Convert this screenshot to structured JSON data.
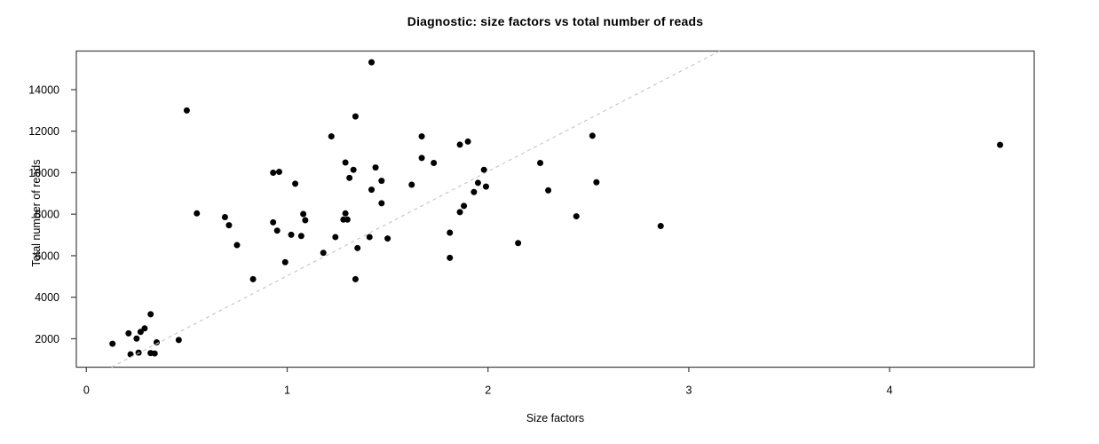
{
  "title": "Diagnostic: size factors vs total number of reads",
  "background_color": "#ffffff",
  "chart_data": {
    "type": "scatter",
    "title": "Diagnostic: size factors vs total number of reads",
    "xlabel": "Size factors",
    "ylabel": "Total number of reads",
    "xlim": [
      -0.05,
      4.72
    ],
    "ylim": [
      630,
      15860
    ],
    "x_ticks": [
      0,
      1,
      2,
      3,
      4
    ],
    "y_ticks": [
      2000,
      4000,
      6000,
      8000,
      10000,
      12000,
      14000
    ],
    "grid": false,
    "legend": "none",
    "point_color": "#000000",
    "point_radius_px": 3.5,
    "axis_color": "#4d4d4d",
    "reference_line": {
      "slope": 5030,
      "intercept": 0,
      "color": "#c9c9c9",
      "dash": "4 4"
    },
    "points": [
      [
        0.13,
        1760
      ],
      [
        0.21,
        2260
      ],
      [
        0.22,
        1250
      ],
      [
        0.25,
        2010
      ],
      [
        0.26,
        1330
      ],
      [
        0.27,
        2330
      ],
      [
        0.29,
        2500
      ],
      [
        0.32,
        3180
      ],
      [
        0.32,
        1310
      ],
      [
        0.34,
        1290
      ],
      [
        0.35,
        1830
      ],
      [
        0.46,
        1940
      ],
      [
        0.5,
        13000
      ],
      [
        0.55,
        8040
      ],
      [
        0.69,
        7860
      ],
      [
        0.71,
        7470
      ],
      [
        0.75,
        6510
      ],
      [
        0.83,
        4870
      ],
      [
        0.93,
        10000
      ],
      [
        0.93,
        7610
      ],
      [
        0.95,
        7210
      ],
      [
        0.96,
        10040
      ],
      [
        0.99,
        5690
      ],
      [
        1.02,
        7010
      ],
      [
        1.04,
        9470
      ],
      [
        1.07,
        6950
      ],
      [
        1.08,
        8010
      ],
      [
        1.09,
        7710
      ],
      [
        1.18,
        6140
      ],
      [
        1.22,
        11750
      ],
      [
        1.24,
        6900
      ],
      [
        1.28,
        7740
      ],
      [
        1.29,
        10490
      ],
      [
        1.29,
        8040
      ],
      [
        1.3,
        7740
      ],
      [
        1.31,
        9750
      ],
      [
        1.33,
        10140
      ],
      [
        1.34,
        12710
      ],
      [
        1.34,
        4870
      ],
      [
        1.35,
        6370
      ],
      [
        1.41,
        6900
      ],
      [
        1.42,
        15320
      ],
      [
        1.42,
        9180
      ],
      [
        1.44,
        10250
      ],
      [
        1.47,
        9610
      ],
      [
        1.47,
        8530
      ],
      [
        1.5,
        6830
      ],
      [
        1.62,
        9420
      ],
      [
        1.67,
        11750
      ],
      [
        1.67,
        10710
      ],
      [
        1.73,
        10470
      ],
      [
        1.81,
        7110
      ],
      [
        1.81,
        5900
      ],
      [
        1.86,
        11350
      ],
      [
        1.86,
        8100
      ],
      [
        1.88,
        8400
      ],
      [
        1.9,
        11500
      ],
      [
        1.93,
        9070
      ],
      [
        1.95,
        9510
      ],
      [
        1.98,
        10140
      ],
      [
        1.99,
        9330
      ],
      [
        2.15,
        6610
      ],
      [
        2.26,
        10470
      ],
      [
        2.3,
        9150
      ],
      [
        2.44,
        7900
      ],
      [
        2.52,
        11780
      ],
      [
        2.54,
        9540
      ],
      [
        2.86,
        7430
      ],
      [
        4.55,
        11340
      ]
    ]
  }
}
